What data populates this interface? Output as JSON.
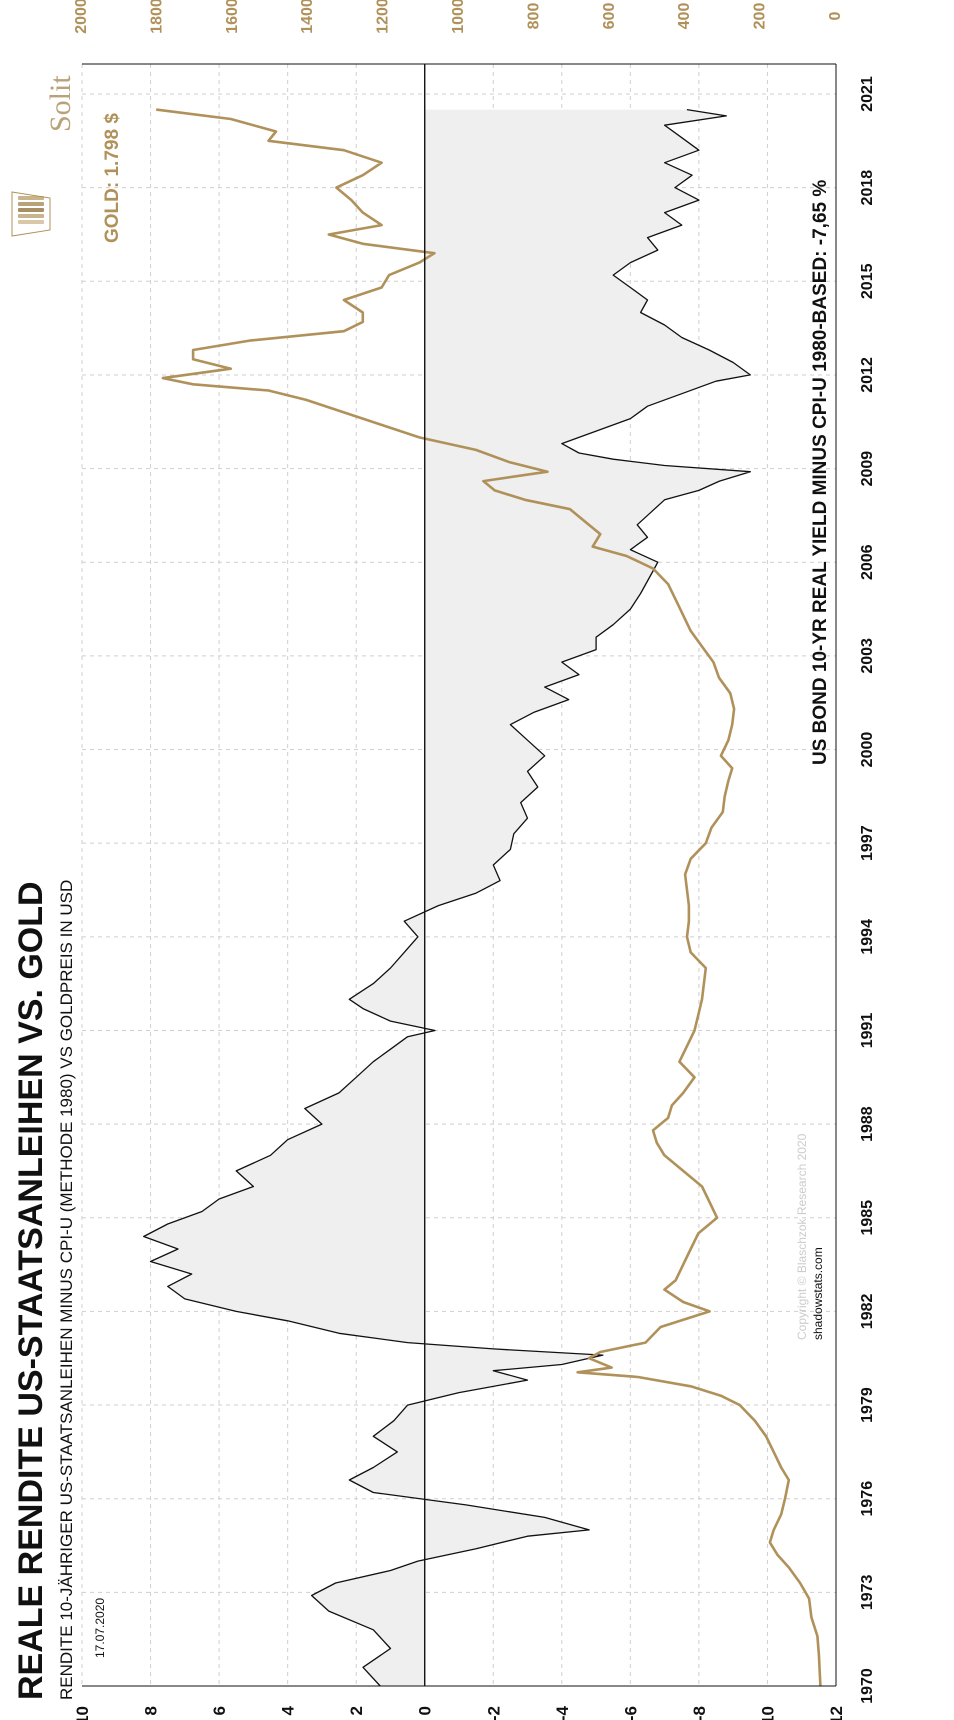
{
  "title": "REALE RENDITE US-STAATSANLEIHEN VS. GOLD",
  "subtitle": "RENDITE 10-JÄHRIGER US-STAATSANLEIHEN MINUS CPI-U (METHODE 1980) VS GOLDPREIS IN USD",
  "date": "17.07.2020",
  "brand": "Solit",
  "copyright": "Copyright © Blaschzok Research 2020",
  "source": "shadowstats.com",
  "colors": {
    "gold": "#b0915a",
    "yield_line": "#111111",
    "fill": "#efefef",
    "grid": "#cfcfcf"
  },
  "chart_data": {
    "type": "line",
    "orientation": "rotated-90-ccw",
    "x_ticks": [
      "1970",
      "1973",
      "1976",
      "1979",
      "1982",
      "1985",
      "1988",
      "1991",
      "1994",
      "1997",
      "2000",
      "2003",
      "2006",
      "2009",
      "2012",
      "2015",
      "2018",
      "2021"
    ],
    "xlim": [
      1970,
      2021
    ],
    "y_left": {
      "ticks": [
        "10",
        "8",
        "6",
        "4",
        "2",
        "0",
        "-2",
        "-4",
        "-6",
        "-8",
        "-10",
        "-12"
      ],
      "lim": [
        -12,
        10
      ]
    },
    "y_right": {
      "ticks": [
        "2000",
        "1800",
        "1600",
        "1400",
        "1200",
        "1000",
        "800",
        "600",
        "400",
        "200",
        "0"
      ],
      "lim": [
        0,
        2000
      ]
    },
    "grid": true,
    "series": [
      {
        "name": "US BOND 10-YR REAL YIELD MINUS CPI-U 1980-BASED: -7,65 %",
        "axis": "left",
        "fill_to_zero": true,
        "x": [
          1970.0,
          1970.6,
          1971.2,
          1971.8,
          1972.4,
          1972.9,
          1973.3,
          1973.7,
          1974.0,
          1974.4,
          1974.8,
          1975.0,
          1975.4,
          1975.8,
          1976.2,
          1976.6,
          1977.0,
          1977.5,
          1978.0,
          1978.5,
          1979.0,
          1979.4,
          1979.8,
          1980.1,
          1980.3,
          1980.6,
          1980.8,
          1981.0,
          1981.3,
          1981.7,
          1982.0,
          1982.4,
          1982.8,
          1983.2,
          1983.6,
          1984.0,
          1984.4,
          1984.8,
          1985.2,
          1985.6,
          1986.0,
          1986.5,
          1987.0,
          1987.5,
          1988.0,
          1988.5,
          1989.0,
          1989.5,
          1990.0,
          1990.4,
          1990.8,
          1991.0,
          1991.3,
          1991.7,
          1992.0,
          1992.5,
          1993.0,
          1993.5,
          1994.0,
          1994.5,
          1995.0,
          1995.4,
          1995.8,
          1996.3,
          1996.8,
          1997.3,
          1997.8,
          1998.3,
          1998.8,
          1999.3,
          1999.8,
          2000.3,
          2000.8,
          2001.2,
          2001.6,
          2002.0,
          2002.4,
          2002.8,
          2003.2,
          2003.6,
          2004.0,
          2004.5,
          2005.0,
          2005.4,
          2005.8,
          2006.0,
          2006.4,
          2006.8,
          2007.2,
          2007.6,
          2008.0,
          2008.3,
          2008.6,
          2008.9,
          2009.1,
          2009.3,
          2009.5,
          2009.8,
          2010.2,
          2010.6,
          2011.0,
          2011.4,
          2011.8,
          2012.0,
          2012.4,
          2012.8,
          2013.2,
          2013.6,
          2014.0,
          2014.4,
          2014.8,
          2015.2,
          2015.6,
          2016.0,
          2016.4,
          2016.8,
          2017.2,
          2017.6,
          2018.0,
          2018.4,
          2018.8,
          2019.2,
          2019.6,
          2020.0,
          2020.3,
          2020.5
        ],
        "values": [
          1.3,
          1.8,
          1.0,
          1.5,
          2.8,
          3.3,
          2.6,
          1.0,
          0.2,
          -1.5,
          -3.0,
          -4.8,
          -3.5,
          -1.2,
          1.5,
          2.2,
          1.5,
          0.8,
          1.5,
          0.9,
          0.5,
          -1.0,
          -3.0,
          -2.0,
          -4.0,
          -5.2,
          -2.0,
          0.5,
          2.5,
          4.0,
          5.5,
          7.0,
          7.5,
          6.8,
          8.0,
          7.2,
          8.2,
          7.5,
          6.5,
          6.0,
          5.0,
          5.5,
          4.5,
          4.0,
          3.0,
          3.5,
          2.5,
          2.0,
          1.5,
          1.0,
          0.5,
          -0.3,
          1.0,
          1.8,
          2.2,
          1.5,
          1.0,
          0.6,
          0.2,
          0.6,
          -0.4,
          -1.5,
          -2.2,
          -2.0,
          -2.5,
          -2.6,
          -3.0,
          -2.8,
          -3.3,
          -3.0,
          -3.5,
          -3.0,
          -2.5,
          -3.2,
          -4.2,
          -3.5,
          -4.5,
          -4.0,
          -5.0,
          -5.0,
          -5.5,
          -6.0,
          -6.3,
          -6.5,
          -6.7,
          -6.8,
          -6.0,
          -6.5,
          -6.2,
          -6.6,
          -7.0,
          -8.0,
          -8.6,
          -9.5,
          -7.0,
          -5.5,
          -4.5,
          -4.0,
          -5.0,
          -6.0,
          -6.5,
          -7.5,
          -8.5,
          -9.5,
          -9.0,
          -8.3,
          -7.5,
          -7.0,
          -6.3,
          -6.5,
          -6.0,
          -5.5,
          -6.0,
          -6.8,
          -6.5,
          -7.5,
          -7.0,
          -8.0,
          -7.3,
          -7.8,
          -7.0,
          -8.0,
          -7.5,
          -7.0,
          -8.8,
          -7.65
        ]
      },
      {
        "name": "GOLD: 1.798 $",
        "axis": "right",
        "x": [
          1970.0,
          1971.0,
          1971.6,
          1972.2,
          1972.8,
          1973.3,
          1973.8,
          1974.2,
          1974.6,
          1975.0,
          1975.5,
          1976.0,
          1976.6,
          1977.0,
          1977.5,
          1978.0,
          1978.5,
          1979.0,
          1979.3,
          1979.6,
          1979.9,
          1980.05,
          1980.2,
          1980.5,
          1980.7,
          1981.0,
          1981.5,
          1982.0,
          1982.3,
          1982.7,
          1983.0,
          1983.5,
          1984.0,
          1984.5,
          1985.0,
          1985.5,
          1986.0,
          1986.5,
          1987.0,
          1987.4,
          1987.8,
          1988.2,
          1988.6,
          1989.0,
          1989.5,
          1990.0,
          1990.5,
          1991.0,
          1991.5,
          1992.0,
          1992.5,
          1993.0,
          1993.5,
          1994.0,
          1994.5,
          1995.0,
          1995.5,
          1996.0,
          1996.5,
          1997.0,
          1997.5,
          1998.0,
          1998.5,
          1999.0,
          1999.4,
          1999.8,
          2000.3,
          2000.8,
          2001.3,
          2001.8,
          2002.3,
          2002.8,
          2003.3,
          2003.8,
          2004.3,
          2004.8,
          2005.3,
          2005.8,
          2006.2,
          2006.5,
          2006.9,
          2007.3,
          2007.7,
          2008.0,
          2008.3,
          2008.6,
          2008.9,
          2009.2,
          2009.6,
          2010.0,
          2010.4,
          2010.8,
          2011.2,
          2011.5,
          2011.7,
          2011.9,
          2012.2,
          2012.5,
          2012.8,
          2013.1,
          2013.4,
          2013.7,
          2014.0,
          2014.4,
          2014.8,
          2015.2,
          2015.6,
          2015.9,
          2016.2,
          2016.5,
          2016.8,
          2017.2,
          2017.6,
          2018.0,
          2018.4,
          2018.8,
          2019.2,
          2019.5,
          2019.8,
          2020.2,
          2020.5
        ],
        "values": [
          36,
          40,
          44,
          60,
          66,
          90,
          120,
          150,
          170,
          160,
          140,
          130,
          120,
          140,
          160,
          180,
          210,
          250,
          300,
          380,
          520,
          680,
          590,
          650,
          620,
          500,
          460,
          330,
          400,
          450,
          420,
          400,
          380,
          360,
          310,
          330,
          350,
          400,
          450,
          470,
          480,
          440,
          430,
          400,
          370,
          410,
          390,
          370,
          360,
          350,
          345,
          340,
          380,
          390,
          385,
          385,
          390,
          395,
          380,
          340,
          325,
          295,
          290,
          280,
          270,
          300,
          280,
          270,
          265,
          275,
          305,
          320,
          350,
          380,
          400,
          420,
          440,
          480,
          550,
          640,
          620,
          660,
          700,
          820,
          900,
          930,
          760,
          860,
          950,
          1100,
          1200,
          1300,
          1400,
          1500,
          1700,
          1780,
          1600,
          1700,
          1700,
          1550,
          1300,
          1250,
          1250,
          1300,
          1200,
          1180,
          1100,
          1060,
          1250,
          1340,
          1200,
          1250,
          1280,
          1320,
          1250,
          1200,
          1300,
          1500,
          1480,
          1600,
          1798
        ]
      }
    ]
  }
}
